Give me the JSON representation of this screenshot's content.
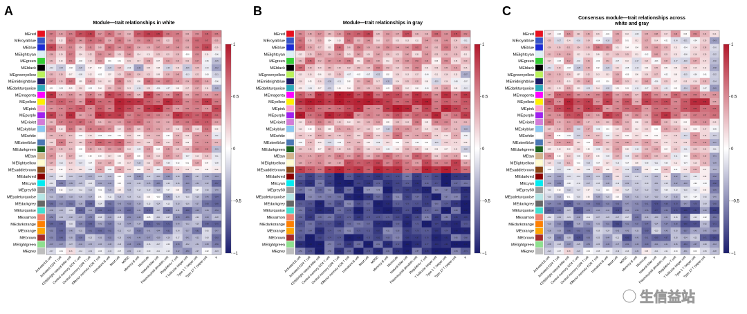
{
  "chart_data": [
    {
      "panel": "A",
      "type": "heatmap",
      "title_lines": [
        "Module—trait relationships in white"
      ],
      "rows": [
        "MEred",
        "MEroyalblue",
        "MEblue",
        "MElightcyan",
        "MEgreen",
        "MEblack",
        "MEgreenyellow",
        "MEmidnightblue",
        "MEdarkturquoise",
        "MEmagenta",
        "MEyellow",
        "MEpink",
        "MEpurple",
        "MEviolet",
        "MEskyblue",
        "MEwhite",
        "MEsteelblue",
        "MEdarkgreen",
        "MEtan",
        "MElightyellow",
        "MEsaddlebrown",
        "MEdarkred",
        "MEcyan",
        "MEgrey60",
        "MEpaleturquoise",
        "MEdarkgrey",
        "MEturquoise",
        "MEsalmon",
        "MEdarkorange",
        "MEorange",
        "MEbrown",
        "MElightgreen",
        "MEgrey"
      ],
      "columns": [
        "Activated B cell",
        "Activated CD4 T cell",
        "CD56bright natural killer cell",
        "Central memory CD4 T cell",
        "Central memory CD8 T cell",
        "Effector memory CD8 T cell",
        "Immature B cell",
        "Mast cell",
        "MDSC",
        "Memory B cell",
        "Monocyte",
        "Natural killer cell",
        "Plasmacytoid dendritic cell",
        "Regulatory T cell",
        "T follicular helper cell",
        "Type 1 T helper cell",
        "Type 17 T helper cell",
        "γ"
      ],
      "row_profile": [
        0.55,
        0.35,
        0.5,
        0.2,
        0.1,
        -0.05,
        0.15,
        0.3,
        0.1,
        0.6,
        0.7,
        0.65,
        0.65,
        0.45,
        0.3,
        0.15,
        0.35,
        0.2,
        0.15,
        0.1,
        0.1,
        -0.3,
        -0.35,
        -0.25,
        -0.3,
        -0.45,
        -0.5,
        -0.35,
        -0.5,
        -0.45,
        -0.45,
        -0.4,
        -0.2
      ],
      "scale": {
        "min": -1,
        "max": 1,
        "ticks": [
          "1",
          "0.5",
          "0",
          "−0.5",
          "−1"
        ]
      }
    },
    {
      "panel": "B",
      "type": "heatmap",
      "title_lines": [
        "Module—trait relationships in gray"
      ],
      "rows": [
        "MEred",
        "MEroyalblue",
        "MEblue",
        "MElightcyan",
        "MEgreen",
        "MEblack",
        "MEgreenyellow",
        "MEmidnightblue",
        "MEdarkturquoise",
        "MEmagenta",
        "MEyellow",
        "MEpink",
        "MEpurple",
        "MEviolet",
        "MEskyblue",
        "MEwhite",
        "MEsteelblue",
        "MEdarkgreen",
        "MEtan",
        "MElightyellow",
        "MEsaddlebrown",
        "MEdarkred",
        "MEcyan",
        "MEgrey60",
        "MEpaleturquoise",
        "MEdarkgrey",
        "MEturquoise",
        "MEsalmon",
        "MEdarkorange",
        "MEorange",
        "MEbrown",
        "MElightgreen",
        "MEgrey"
      ],
      "columns": [
        "Activated B cell",
        "Activated CD4 T cell",
        "CD56bright natural killer cell",
        "Central memory CD4 T cell",
        "Central memory CD8 T cell",
        "Effector memory CD8 T cell",
        "Immature B cell",
        "Mast cell",
        "MDSC",
        "Memory B cell",
        "Monocyte",
        "Natural killer cell",
        "Plasmacytoid dendritic cell",
        "Regulatory T cell",
        "T follicular helper cell",
        "Type 1 T helper cell",
        "Type 17 T helper cell",
        "γ"
      ],
      "row_profile": [
        0.45,
        0.3,
        0.4,
        0.25,
        0.35,
        0.3,
        0.0,
        0.05,
        0.1,
        0.75,
        0.8,
        0.75,
        0.7,
        0.3,
        0.1,
        0.25,
        0.1,
        0.2,
        0.45,
        0.6,
        0.75,
        -0.8,
        -0.8,
        -0.75,
        -0.8,
        -0.8,
        -0.85,
        -0.75,
        -0.8,
        -0.75,
        -0.8,
        -0.8,
        -0.8
      ],
      "scale": {
        "min": -1,
        "max": 1,
        "ticks": [
          "1",
          "0.5",
          "0",
          "−0.5",
          "−1"
        ]
      }
    },
    {
      "panel": "C",
      "type": "heatmap",
      "title_lines": [
        "Consensus module—trait relationships across",
        "white and gray"
      ],
      "rows": [
        "MEred",
        "MEroyalblue",
        "MEblue",
        "MElightcyan",
        "MEgreen",
        "MEblack",
        "MEgreenyellow",
        "MEmidnightblue",
        "MEdarkturquoise",
        "MEmagenta",
        "MEyellow",
        "MEpink",
        "MEpurple",
        "MEviolet",
        "MEskyblue",
        "MEwhite",
        "MEsteelblue",
        "MEdarkgreen",
        "MEtan",
        "MElightyellow",
        "MEsaddlebrown",
        "MEdarkred",
        "MEcyan",
        "MEgrey60",
        "MEpaleturquoise",
        "MEdarkgrey",
        "MEturquoise",
        "MEsalmon",
        "MEdarkorange",
        "MEorange",
        "MEbrown",
        "MElightgreen",
        "MEgrey"
      ],
      "columns": [
        "Activated B cell",
        "Activated CD4 T cell",
        "CD56bright natural killer cell",
        "Central memory CD4 T cell",
        "Central memory CD8 T cell",
        "Effector memory CD8 T cell",
        "Immature B cell",
        "Mast cell",
        "MDSC",
        "Memory B cell",
        "Monocyte",
        "Natural killer cell",
        "Plasmacytoid dendritic cell",
        "Regulatory T cell",
        "T follicular helper cell",
        "Type 1 T helper cell",
        "Type 17 T helper cell",
        "γ"
      ],
      "row_profile": [
        0.2,
        0.05,
        0.25,
        0.1,
        0.05,
        0.0,
        0.05,
        0.1,
        0.0,
        0.55,
        0.65,
        0.6,
        0.6,
        0.3,
        0.1,
        0.05,
        0.15,
        0.05,
        0.1,
        0.0,
        0.0,
        -0.2,
        -0.3,
        -0.15,
        -0.25,
        -0.55,
        -0.6,
        -0.35,
        -0.6,
        -0.5,
        -0.55,
        -0.45,
        -0.15
      ],
      "scale": {
        "min": -1,
        "max": 1,
        "ticks": [
          "1",
          "0.5",
          "0",
          "−0.5",
          "−1"
        ]
      }
    }
  ],
  "module_colors": [
    "#e8101f",
    "#3656c8",
    "#1c2bd6",
    "#dcf0f5",
    "#32cd32",
    "#000000",
    "#b9f25a",
    "#1a1a66",
    "#2aa8ba",
    "#ff00ff",
    "#ffef00",
    "#ff9ecb",
    "#a020f0",
    "#d47bd8",
    "#8bc8f2",
    "#ffffff",
    "#4a78b4",
    "#1d6420",
    "#d2b48c",
    "#fffcd0",
    "#8b4513",
    "#8b0000",
    "#00ecf2",
    "#9a9a9a",
    "#b6e6e6",
    "#676767",
    "#40e0d0",
    "#f08070",
    "#ff7f00",
    "#ffa500",
    "#a52a2a",
    "#8ee08e",
    "#bebebe"
  ],
  "palette": {
    "low": "#1a1d6e",
    "mid": "#ffffff",
    "high": "#b2182b"
  },
  "watermark": "生信益站"
}
